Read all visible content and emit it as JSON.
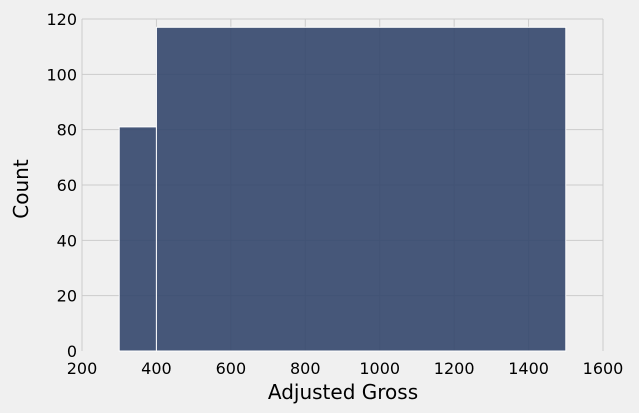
{
  "chart_data": {
    "type": "histogram",
    "title": "",
    "xlabel": "Adjusted Gross",
    "ylabel": "Count",
    "xlim": [
      200,
      1600
    ],
    "ylim": [
      0,
      120
    ],
    "xticks": [
      "200",
      "400",
      "600",
      "800",
      "1000",
      "1200",
      "1400",
      "1600"
    ],
    "yticks": [
      "0",
      "20",
      "40",
      "60",
      "80",
      "100",
      "120"
    ],
    "grid": true,
    "bins": [
      {
        "start": 300,
        "end": 400,
        "count": 81
      },
      {
        "start": 400,
        "end": 1500,
        "count": 117
      }
    ],
    "colors": {
      "bar": "#33466b",
      "bar_opacity": 0.9,
      "background": "#f0f0f0",
      "grid": "#cbcbcb"
    }
  }
}
